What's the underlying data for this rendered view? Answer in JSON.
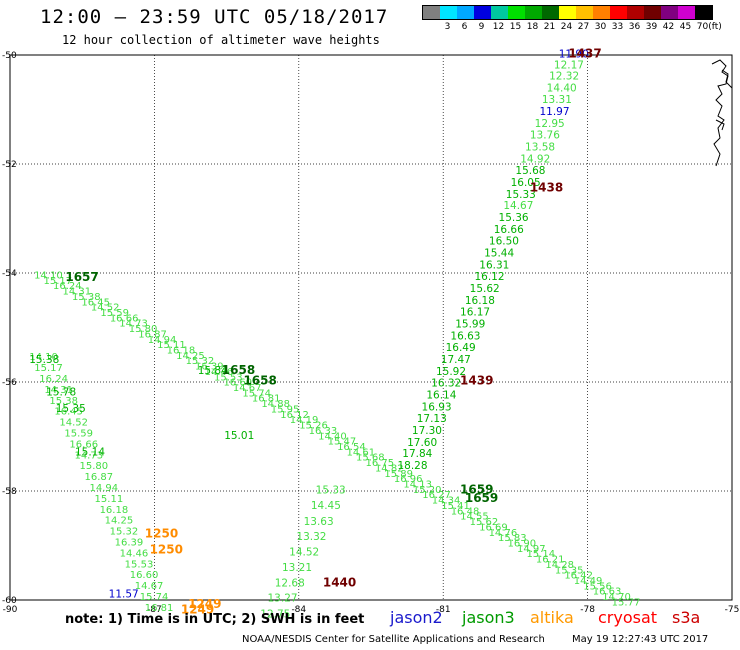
{
  "header": {
    "title": "12:00 — 23:59 UTC 05/18/2017",
    "subtitle": "12 hour collection of altimeter wave heights"
  },
  "color_scale": {
    "unit_label": "(ft)",
    "bins": [
      {
        "label": "",
        "color": "#808080"
      },
      {
        "label": "3",
        "color": "#00e5ff"
      },
      {
        "label": "6",
        "color": "#00a8ff"
      },
      {
        "label": "9",
        "color": "#0000e0"
      },
      {
        "label": "12",
        "color": "#00c8a0"
      },
      {
        "label": "15",
        "color": "#00e000"
      },
      {
        "label": "18",
        "color": "#00a800"
      },
      {
        "label": "21",
        "color": "#006800"
      },
      {
        "label": "24",
        "color": "#ffff00"
      },
      {
        "label": "27",
        "color": "#ffc000"
      },
      {
        "label": "30",
        "color": "#ff8000"
      },
      {
        "label": "33",
        "color": "#ff0000"
      },
      {
        "label": "36",
        "color": "#b00000"
      },
      {
        "label": "39",
        "color": "#700000"
      },
      {
        "label": "42",
        "color": "#800080"
      },
      {
        "label": "45",
        "color": "#d000d0"
      },
      {
        "label": "70",
        "color": "#000000"
      }
    ]
  },
  "map": {
    "lon_range": [
      -90,
      -75
    ],
    "lat_range": [
      -60,
      -50
    ],
    "lon_ticks": [
      "-90",
      "-87",
      "-84",
      "-81",
      "-78",
      "-75"
    ],
    "lat_ticks": [
      "-50",
      "-52",
      "-54",
      "-56",
      "-58",
      "-60"
    ]
  },
  "chart_data": {
    "type": "scatter",
    "title": "12:00 — 23:59 UTC 05/18/2017",
    "subtitle": "12 hour collection of altimeter wave heights",
    "units": "ft",
    "x_ticks": [
      -90,
      -87,
      -84,
      -81,
      -78,
      -75
    ],
    "y_ticks": [
      -50,
      -52,
      -54,
      -56,
      -58,
      -60
    ],
    "colors": {
      "light_green": "#44dd44",
      "green": "#00b000",
      "dark_green": "#006400",
      "blue": "#0000cc",
      "orange": "#ff8c00",
      "dark_red": "#700000"
    },
    "tracks": [
      {
        "name": "ascending pass (jason3)",
        "labels": [
          {
            "lon": -78.6,
            "lat": -50.05,
            "text": "11.90",
            "color": "blue"
          },
          {
            "lon": -78.7,
            "lat": -50.25,
            "text": "12.17",
            "color": "light_green"
          },
          {
            "lon": -78.8,
            "lat": -50.45,
            "text": "12.32",
            "color": "light_green"
          },
          {
            "lon": -78.85,
            "lat": -50.67,
            "text": "14.40",
            "color": "light_green"
          },
          {
            "lon": -78.95,
            "lat": -50.88,
            "text": "13.31",
            "color": "light_green"
          },
          {
            "lon": -79.0,
            "lat": -51.1,
            "text": "11.97",
            "color": "blue"
          },
          {
            "lon": -79.1,
            "lat": -51.32,
            "text": "12.95",
            "color": "light_green"
          },
          {
            "lon": -79.2,
            "lat": -51.53,
            "text": "13.76",
            "color": "light_green"
          },
          {
            "lon": -79.3,
            "lat": -51.75,
            "text": "13.58",
            "color": "light_green"
          },
          {
            "lon": -79.4,
            "lat": -51.97,
            "text": "14.92",
            "color": "light_green"
          },
          {
            "lon": -79.5,
            "lat": -52.18,
            "text": "15.68",
            "color": "green"
          },
          {
            "lon": -79.6,
            "lat": -52.4,
            "text": "16.05",
            "color": "green"
          },
          {
            "lon": -79.7,
            "lat": -52.62,
            "text": "15.33",
            "color": "green"
          },
          {
            "lon": -79.75,
            "lat": -52.83,
            "text": "14.67",
            "color": "light_green"
          },
          {
            "lon": -79.85,
            "lat": -53.05,
            "text": "15.36",
            "color": "green"
          },
          {
            "lon": -79.95,
            "lat": -53.27,
            "text": "16.66",
            "color": "green"
          },
          {
            "lon": -80.05,
            "lat": -53.48,
            "text": "16.50",
            "color": "green"
          },
          {
            "lon": -80.15,
            "lat": -53.7,
            "text": "15.44",
            "color": "green"
          },
          {
            "lon": -80.25,
            "lat": -53.92,
            "text": "16.31",
            "color": "green"
          },
          {
            "lon": -80.35,
            "lat": -54.13,
            "text": "16.12",
            "color": "green"
          },
          {
            "lon": -80.45,
            "lat": -54.35,
            "text": "15.62",
            "color": "green"
          },
          {
            "lon": -80.55,
            "lat": -54.57,
            "text": "16.18",
            "color": "green"
          },
          {
            "lon": -80.65,
            "lat": -54.78,
            "text": "16.17",
            "color": "green"
          },
          {
            "lon": -80.75,
            "lat": -55.0,
            "text": "15.99",
            "color": "green"
          },
          {
            "lon": -80.85,
            "lat": -55.22,
            "text": "16.63",
            "color": "green"
          },
          {
            "lon": -80.95,
            "lat": -55.43,
            "text": "16.49",
            "color": "green"
          },
          {
            "lon": -81.05,
            "lat": -55.65,
            "text": "17.47",
            "color": "green"
          },
          {
            "lon": -81.15,
            "lat": -55.87,
            "text": "15.92",
            "color": "green"
          },
          {
            "lon": -81.25,
            "lat": -56.08,
            "text": "16.32",
            "color": "green"
          },
          {
            "lon": -81.35,
            "lat": -56.3,
            "text": "16.14",
            "color": "green"
          },
          {
            "lon": -81.45,
            "lat": -56.52,
            "text": "16.93",
            "color": "green"
          },
          {
            "lon": -81.55,
            "lat": -56.73,
            "text": "17.13",
            "color": "green"
          },
          {
            "lon": -81.65,
            "lat": -56.95,
            "text": "17.30",
            "color": "green"
          },
          {
            "lon": -81.75,
            "lat": -57.17,
            "text": "17.60",
            "color": "green"
          },
          {
            "lon": -81.85,
            "lat": -57.38,
            "text": "17.84",
            "color": "green"
          },
          {
            "lon": -81.95,
            "lat": -57.6,
            "text": "18.28",
            "color": "green"
          }
        ]
      },
      {
        "name": "lower ascending pass",
        "labels": [
          {
            "lon": -83.65,
            "lat": -58.05,
            "text": "15.33",
            "color": "light_green"
          },
          {
            "lon": -83.75,
            "lat": -58.33,
            "text": "14.45",
            "color": "light_green"
          },
          {
            "lon": -83.9,
            "lat": -58.62,
            "text": "13.63",
            "color": "light_green"
          },
          {
            "lon": -84.05,
            "lat": -58.9,
            "text": "13.32",
            "color": "light_green"
          },
          {
            "lon": -84.2,
            "lat": -59.18,
            "text": "14.52",
            "color": "light_green"
          },
          {
            "lon": -84.35,
            "lat": -59.47,
            "text": "13.21",
            "color": "light_green"
          },
          {
            "lon": -84.5,
            "lat": -59.75,
            "text": "12.68",
            "color": "light_green"
          },
          {
            "lon": -84.65,
            "lat": -60.03,
            "text": "13.27",
            "color": "light_green"
          },
          {
            "lon": -84.8,
            "lat": -60.32,
            "text": "12.75",
            "color": "light_green"
          }
        ]
      },
      {
        "name": "descending pass 1658",
        "labels": [
          {
            "lon": -86.1,
            "lat": -55.85,
            "text": "15.84",
            "color": "green"
          },
          {
            "lon": -85.55,
            "lat": -57.05,
            "text": "15.01",
            "color": "green"
          }
        ]
      },
      {
        "name": "west pass",
        "labels": [
          {
            "lon": -89.6,
            "lat": -55.65,
            "text": "15.38",
            "color": "green"
          },
          {
            "lon": -89.25,
            "lat": -56.25,
            "text": "15.78",
            "color": "green"
          },
          {
            "lon": -89.05,
            "lat": -56.55,
            "text": "15.35",
            "color": "green"
          },
          {
            "lon": -88.65,
            "lat": -57.35,
            "text": "15.14",
            "color": "green"
          },
          {
            "lon": -87.95,
            "lat": -59.95,
            "text": "11.57",
            "color": "blue"
          }
        ]
      }
    ],
    "time_labels": [
      {
        "lon": -78.4,
        "lat": -50.05,
        "text": "1437",
        "color": "dark_red"
      },
      {
        "lon": -79.2,
        "lat": -52.5,
        "text": "1438",
        "color": "dark_red"
      },
      {
        "lon": -80.65,
        "lat": -56.05,
        "text": "1439",
        "color": "dark_red"
      },
      {
        "lon": -83.5,
        "lat": -59.75,
        "text": "1440",
        "color": "dark_red"
      },
      {
        "lon": -88.85,
        "lat": -54.15,
        "text": "1657",
        "color": "dark_green"
      },
      {
        "lon": -85.6,
        "lat": -55.85,
        "text": "1658",
        "color": "dark_green"
      },
      {
        "lon": -85.15,
        "lat": -56.05,
        "text": "1658",
        "color": "dark_green"
      },
      {
        "lon": -80.65,
        "lat": -58.05,
        "text": "1659",
        "color": "dark_green"
      },
      {
        "lon": -80.55,
        "lat": -58.2,
        "text": "1659",
        "color": "dark_green"
      },
      {
        "lon": -87.2,
        "lat": -58.85,
        "text": "1250",
        "color": "orange"
      },
      {
        "lon": -87.1,
        "lat": -59.15,
        "text": "1250",
        "color": "orange"
      },
      {
        "lon": -86.3,
        "lat": -60.15,
        "text": "1249",
        "color": "orange"
      },
      {
        "lon": -86.45,
        "lat": -60.25,
        "text": "1249",
        "color": "orange"
      }
    ],
    "dense_tracks": [
      {
        "name": "main descending pass",
        "color": "light_green",
        "from": [
          -89.5,
          -54.1
        ],
        "to": [
          -77.5,
          -60.1
        ],
        "count": 62
      },
      {
        "name": "west descending pass",
        "color": "light_green",
        "from": [
          -89.6,
          -55.6
        ],
        "to": [
          -87.2,
          -60.2
        ],
        "count": 24
      }
    ]
  },
  "footer": {
    "note": "note: 1) Time is in UTC; 2) SWH is in feet",
    "credit": "NOAA/NESDIS Center for Satellite Applications and Research",
    "timestamp": "May 19 12:27:43 UTC 2017"
  },
  "legend": [
    {
      "name": "jason2",
      "color": "#1a1acc"
    },
    {
      "name": "jason3",
      "color": "#009a00"
    },
    {
      "name": "altika",
      "color": "#ff9900"
    },
    {
      "name": "cryosat",
      "color": "#ff0000"
    },
    {
      "name": "s3a",
      "color": "#cc0000"
    }
  ]
}
